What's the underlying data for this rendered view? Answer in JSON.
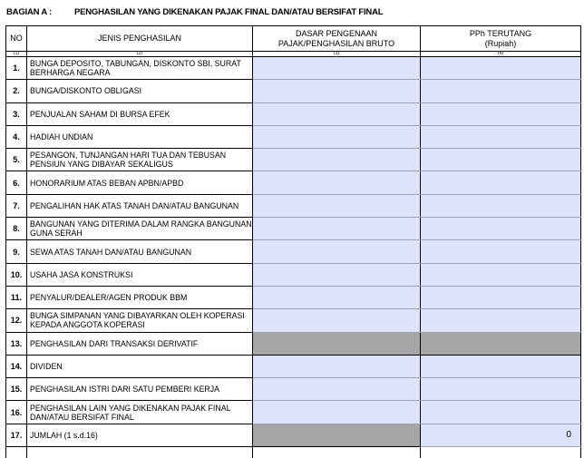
{
  "section": {
    "label": "BAGIAN A :",
    "title": "PENGHASILAN YANG  DIKENAKAN PAJAK  FINAL DAN/ATAU BERSIFAT FINAL"
  },
  "colors": {
    "input_fill": "#dce3fb",
    "disabled_fill": "#a6a6a6"
  },
  "headers": {
    "no": "NO",
    "jenis": "JENIS PENGHASILAN",
    "dasar_line1": "DASAR PENGENAAN",
    "dasar_line2": "PAJAK/PENGHASILAN BRUTO",
    "pph_line1": "PPh TERUTANG",
    "pph_line2": "(Rupiah)"
  },
  "column_index": [
    "(1)",
    "(2)",
    "(3)",
    "(4)"
  ],
  "rows": [
    {
      "no": "1.",
      "label": "BUNGA DEPOSITO, TABUNGAN, DISKONTO SBI, SURAT BERHARGA NEGARA",
      "dasar": "",
      "pph": ""
    },
    {
      "no": "2.",
      "label": "BUNGA/DISKONTO OBLIGASI",
      "dasar": "",
      "pph": ""
    },
    {
      "no": "3.",
      "label": "PENJUALAN SAHAM  DI BURSA EFEK",
      "dasar": "",
      "pph": ""
    },
    {
      "no": "4.",
      "label": "HADIAH UNDIAN",
      "dasar": "",
      "pph": ""
    },
    {
      "no": "5.",
      "label": "PESANGON, TUNJANGAN HARI TUA DAN TEBUSAN PENSIUN YANG DIBAYAR SEKALIGUS",
      "dasar": "",
      "pph": ""
    },
    {
      "no": "6.",
      "label": "HONORARIUM ATAS BEBAN APBN/APBD",
      "dasar": "",
      "pph": ""
    },
    {
      "no": "7.",
      "label": "PENGALIHAN HAK ATAS TANAH DAN/ATAU BANGUNAN",
      "dasar": "",
      "pph": ""
    },
    {
      "no": "8.",
      "label": "BANGUNAN YANG DITERIMA DALAM RANGKA BANGUNAN GUNA SERAH",
      "dasar": "",
      "pph": ""
    },
    {
      "no": "9.",
      "label": "SEWA ATAS TANAH DAN/ATAU BANGUNAN",
      "dasar": "",
      "pph": ""
    },
    {
      "no": "10.",
      "label": "USAHA JASA KONSTRUKSI",
      "dasar": "",
      "pph": ""
    },
    {
      "no": "11.",
      "label": "PENYALUR/DEALER/AGEN PRODUK BBM",
      "dasar": "",
      "pph": ""
    },
    {
      "no": "12.",
      "label": "BUNGA SIMPANAN YANG DIBAYARKAN OLEH KOPERASI KEPADA ANGGOTA KOPERASI",
      "dasar": "",
      "pph": ""
    },
    {
      "no": "13.",
      "label": "PENGHASILAN DARI TRANSAKSI DERIVATIF",
      "dasar": "",
      "pph": "",
      "disabled": [
        true,
        true
      ]
    },
    {
      "no": "14.",
      "label": "DIVIDEN",
      "dasar": "",
      "pph": ""
    },
    {
      "no": "15.",
      "label": "PENGHASILAN ISTRI DARI SATU PEMBERI KERJA",
      "dasar": "",
      "pph": ""
    },
    {
      "no": "16.",
      "label": "PENGHASILAN LAIN YANG DIKENAKAN PAJAK FINAL DAN/ATAU BERSIFAT FINAL",
      "dasar": "",
      "pph": ""
    },
    {
      "no": "17.",
      "label": "JUMLAH (1 s.d.16)",
      "dasar": "",
      "pph": "0",
      "disabled": [
        true,
        false
      ]
    }
  ]
}
